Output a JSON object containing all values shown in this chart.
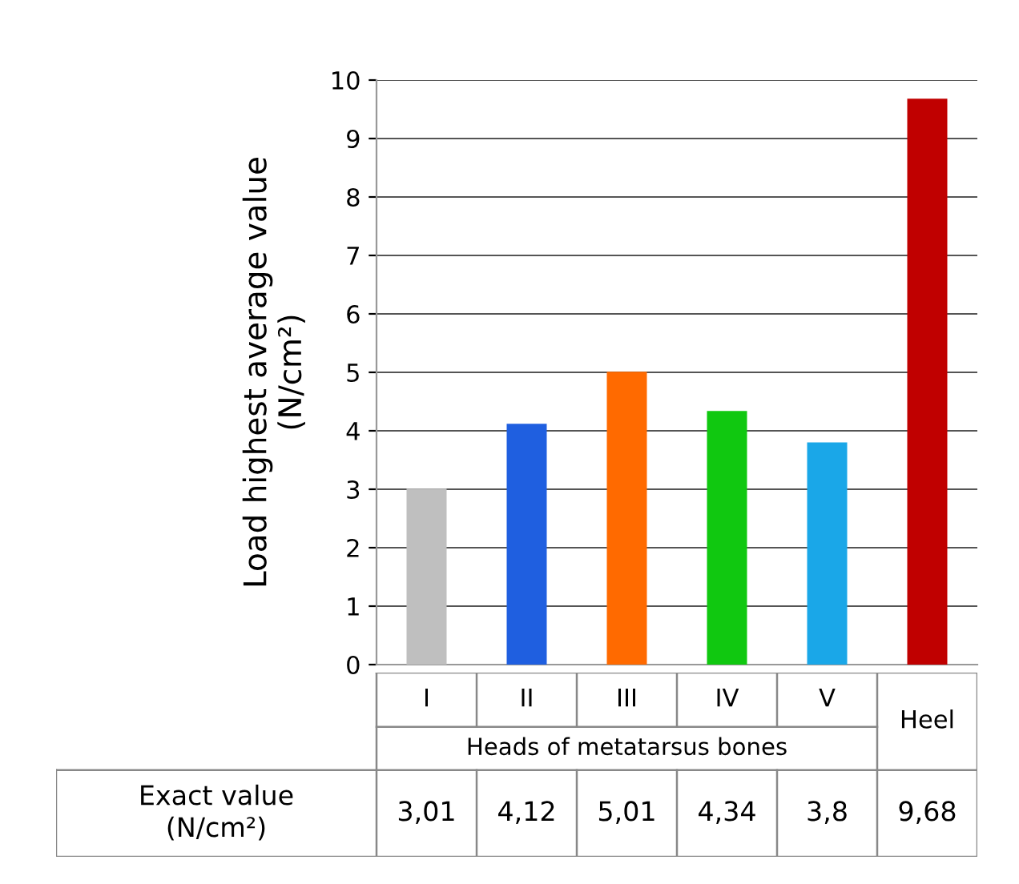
{
  "chart_data": {
    "type": "bar",
    "ylabel": "Load highest average value\n(N/cm²)",
    "categories": [
      "I",
      "II",
      "III",
      "IV",
      "V",
      "Heel"
    ],
    "values": [
      3.01,
      4.12,
      5.01,
      4.34,
      3.8,
      9.68
    ],
    "colors": [
      "#bfbfbf",
      "#1f5fe0",
      "#ff6a00",
      "#10c810",
      "#1aa7e8",
      "#c00000"
    ],
    "value_labels": [
      "3,01",
      "4,12",
      "5,01",
      "4,34",
      "3,8",
      "9,68"
    ],
    "ylim": [
      0,
      10
    ],
    "yticks": [
      0,
      1,
      2,
      3,
      4,
      5,
      6,
      7,
      8,
      9,
      10
    ],
    "grid": "y",
    "annotations": [
      "Heads of metatarsus bones",
      "Exact value\n(N/cm²)"
    ]
  }
}
